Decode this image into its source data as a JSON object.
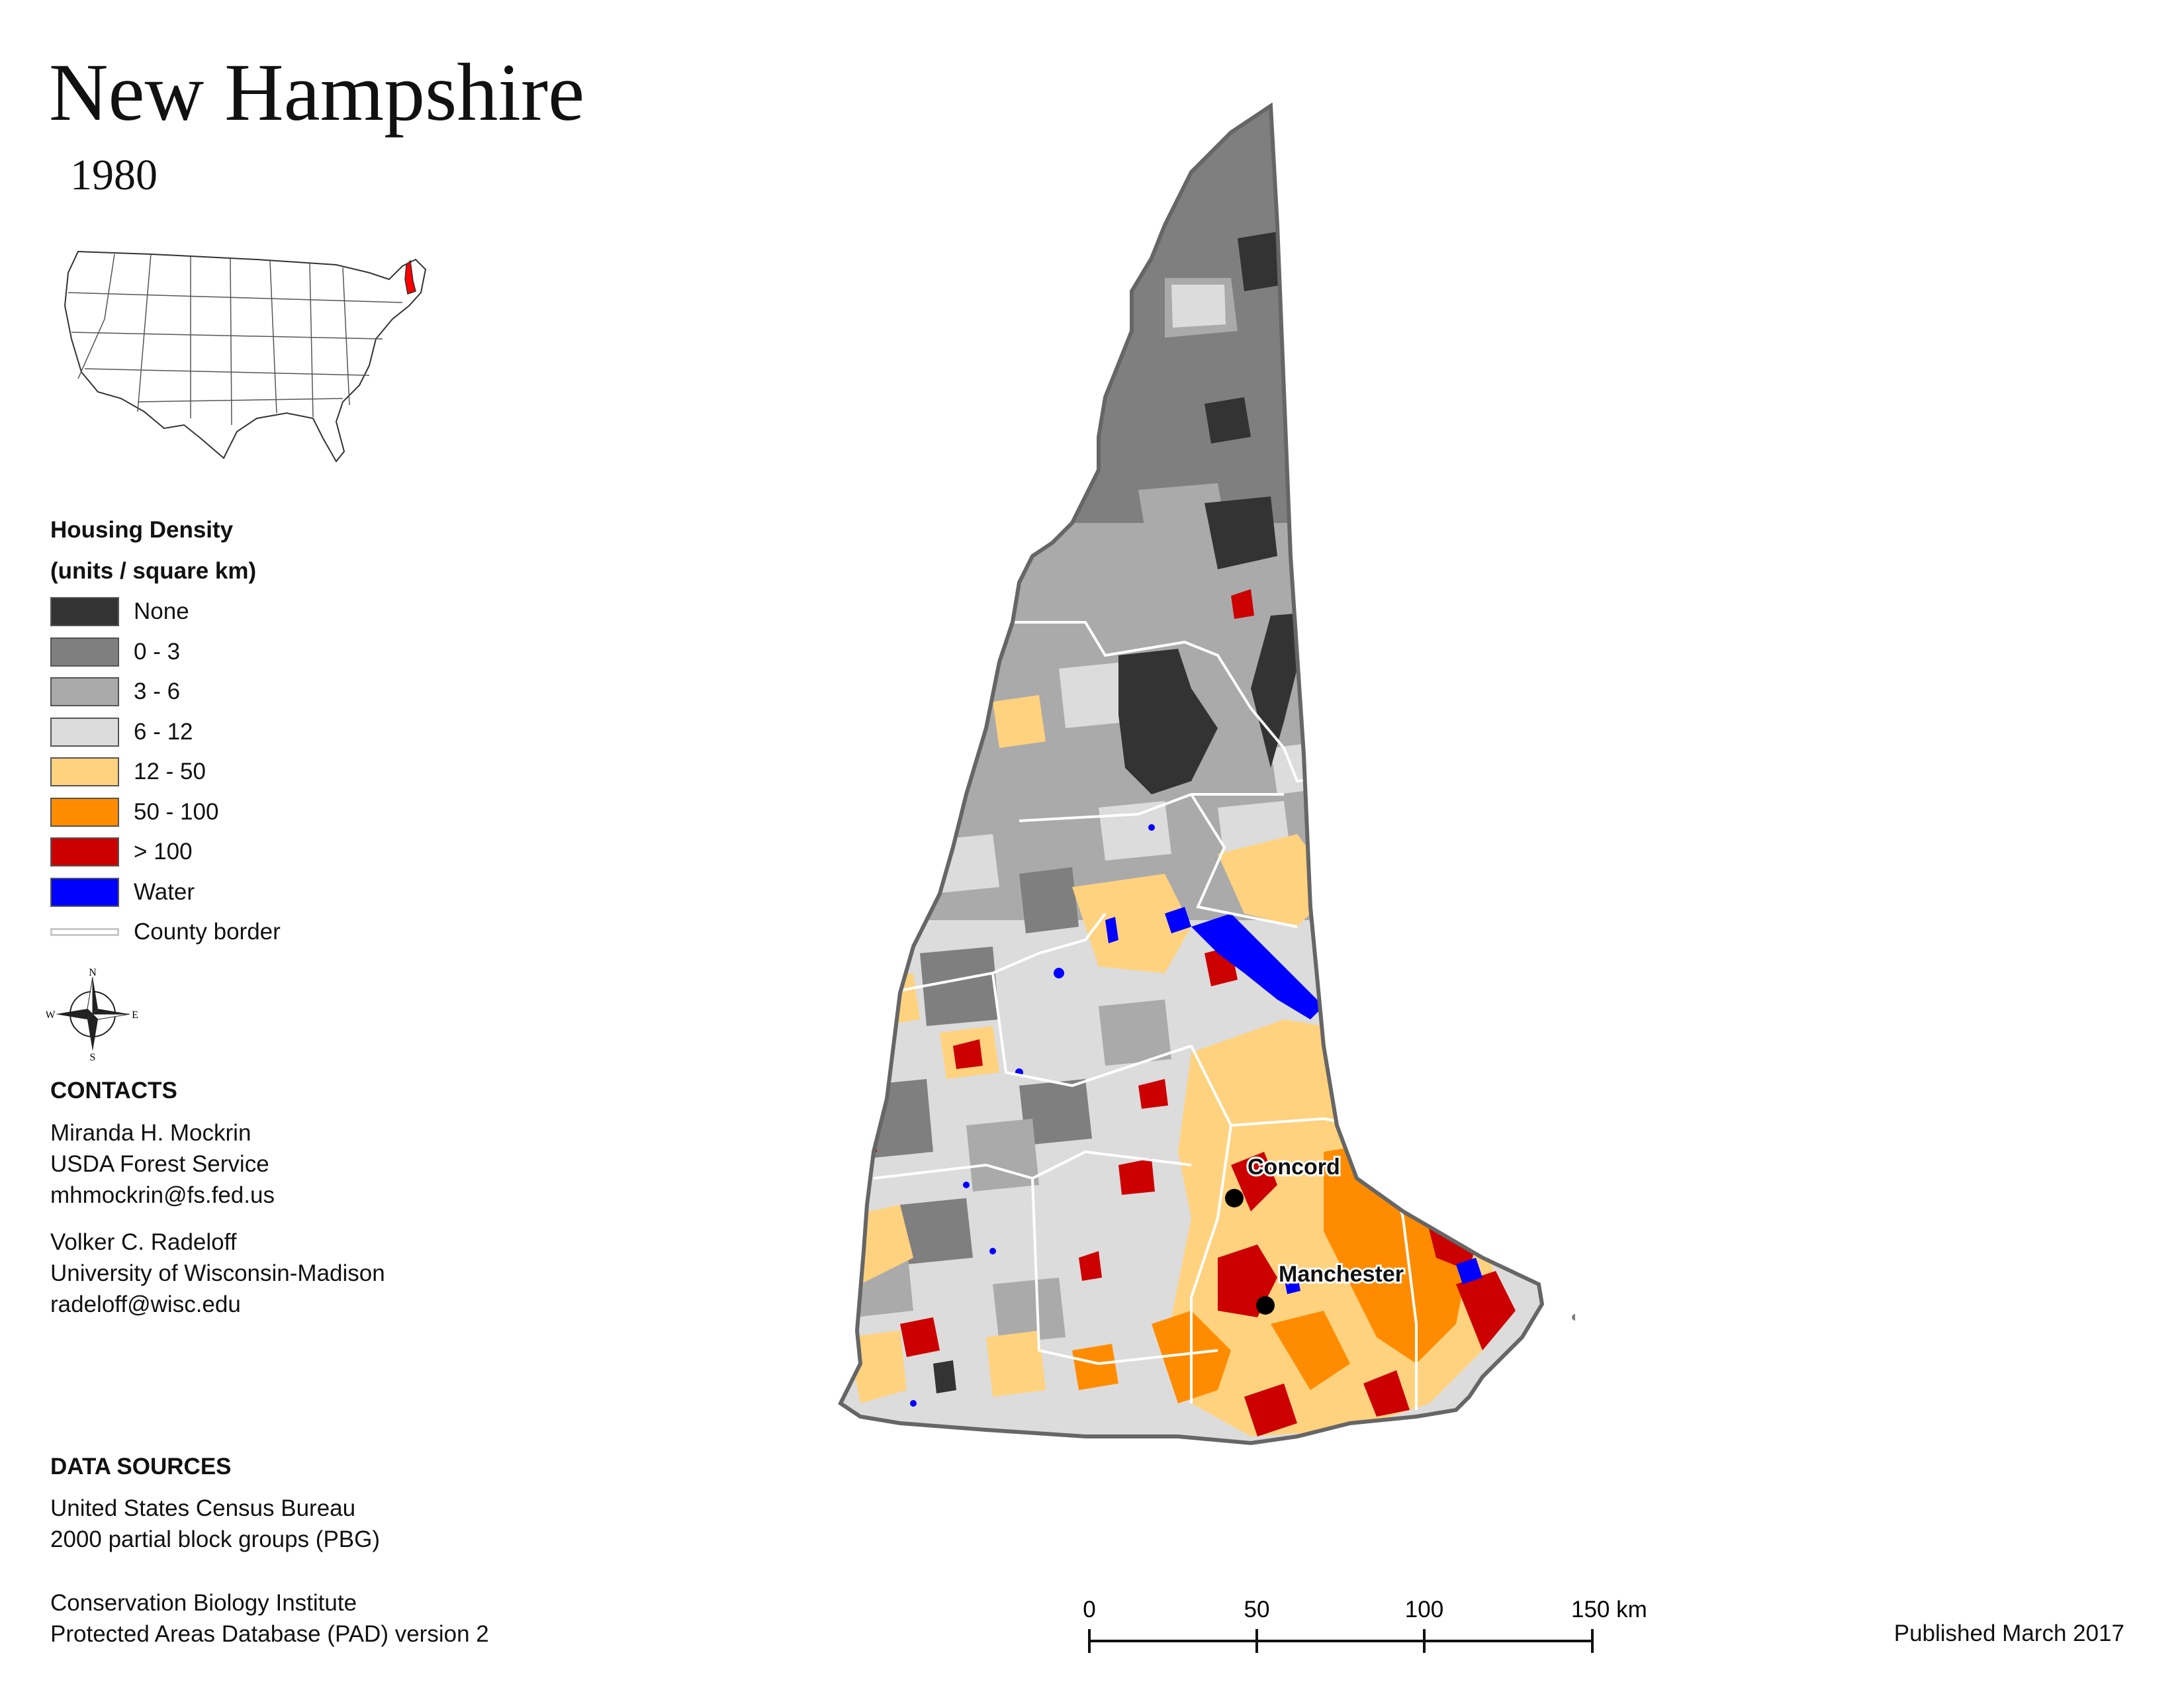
{
  "title": "New Hampshire",
  "year": "1980",
  "legend": {
    "title_line1": "Housing Density",
    "title_line2": "(units / square km)",
    "items": [
      {
        "label": "None",
        "color": "#333333"
      },
      {
        "label": "0 - 3",
        "color": "#7f7f7f"
      },
      {
        "label": "3 - 6",
        "color": "#aaaaaa"
      },
      {
        "label": "6 - 12",
        "color": "#dcdcdc"
      },
      {
        "label": "12 - 50",
        "color": "#ffd27f"
      },
      {
        "label": "50 - 100",
        "color": "#ff8c00"
      },
      {
        "label": "> 100",
        "color": "#cc0000"
      },
      {
        "label": "Water",
        "color": "#0000ff"
      }
    ],
    "county_border_label": "County border"
  },
  "compass": {
    "n": "N",
    "s": "S",
    "e": "E",
    "w": "W"
  },
  "contacts": {
    "heading": "CONTACTS",
    "person1": {
      "name": "Miranda H. Mockrin",
      "org": "USDA Forest Service",
      "email": "mhmockrin@fs.fed.us"
    },
    "person2": {
      "name": "Volker C. Radeloff",
      "org": "University of Wisconsin-Madison",
      "email": "radeloff@wisc.edu"
    }
  },
  "data_sources": {
    "heading": "DATA SOURCES",
    "line1": "United States Census Bureau",
    "line2": "2000 partial block groups (PBG)",
    "line3": "Conservation Biology Institute",
    "line4": "Protected Areas Database (PAD) version 2"
  },
  "cities": [
    {
      "name": "Concord"
    },
    {
      "name": "Manchester"
    }
  ],
  "scale": {
    "ticks": [
      "0",
      "50",
      "100",
      "150 km"
    ]
  },
  "published": "Published March 2017",
  "highlight_color": "#ff0000"
}
